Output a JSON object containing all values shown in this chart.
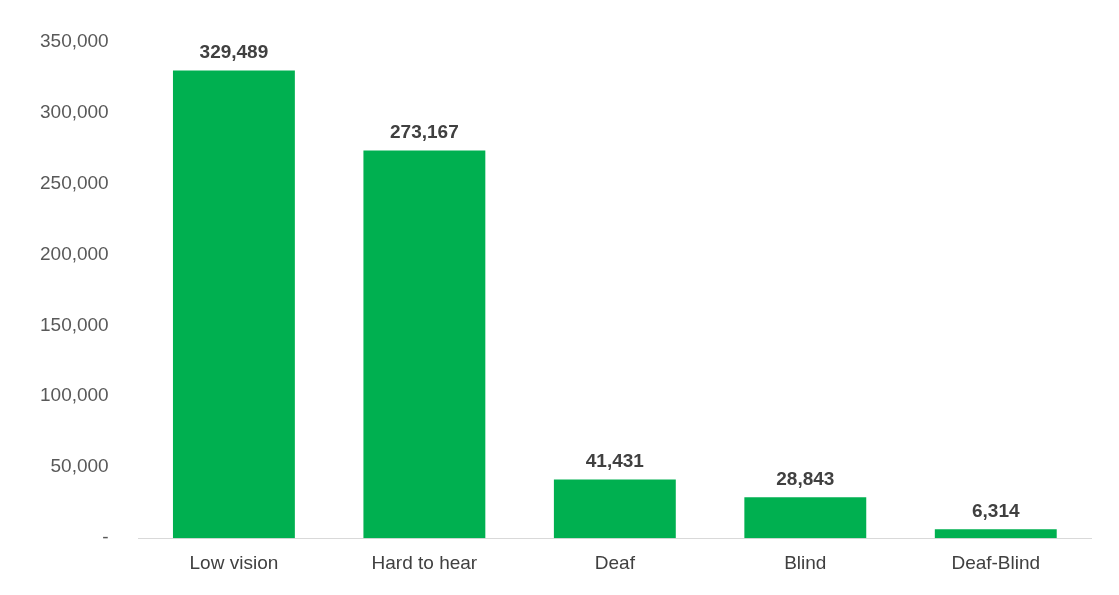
{
  "chart_data": {
    "type": "bar",
    "categories": [
      "Low vision",
      "Hard to hear",
      "Deaf",
      "Blind",
      "Deaf-Blind"
    ],
    "values": [
      329489,
      273167,
      41431,
      28843,
      6314
    ],
    "value_labels": [
      "329,489",
      "273,167",
      "41,431",
      "28,843",
      "6,314"
    ],
    "color": "#00b050",
    "ylim": [
      0,
      350000
    ],
    "yticks": [
      {
        "value": 0,
        "label": "-"
      },
      {
        "value": 50000,
        "label": "50,000"
      },
      {
        "value": 100000,
        "label": "100,000"
      },
      {
        "value": 150000,
        "label": "150,000"
      },
      {
        "value": 200000,
        "label": "200,000"
      },
      {
        "value": 250000,
        "label": "250,000"
      },
      {
        "value": 300000,
        "label": "300,000"
      },
      {
        "value": 350000,
        "label": "350,000"
      }
    ],
    "grid": false,
    "legend": false
  }
}
